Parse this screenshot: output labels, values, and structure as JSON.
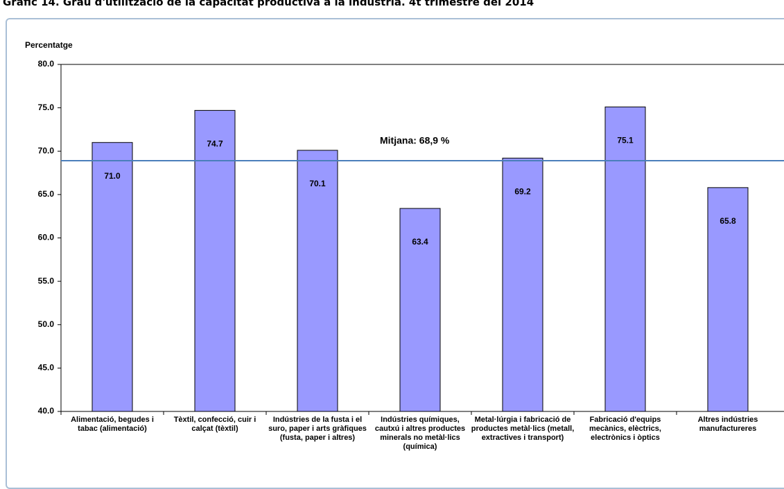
{
  "chart_data": {
    "type": "bar",
    "title": "Gràfic 14. Grau d'utilització de la capacitat productiva a la indústria. 4t trimestre del 2014",
    "y_label": "Percentatge",
    "categories": [
      "Alimentació, begudes i tabac (alimentació)",
      "Tèxtil, confecció, cuir i calçat (tèxtil)",
      "Indústries de la fusta i el suro, paper i arts gràfiques (fusta, paper i altres)",
      "Indústries químiques, cautxú i altres productes minerals no metàl·lics (química)",
      "Metal·lúrgia i fabricació de productes metàl·lics (metall, extractives i transport)",
      "Fabricació d'equips mecànics, elèctrics, electrònics i òptics",
      "Altres indústries manufactureres"
    ],
    "values": [
      71.0,
      74.7,
      70.1,
      63.4,
      69.2,
      75.1,
      65.8
    ],
    "value_labels": [
      "71.0",
      "74.7",
      "70.1",
      "63.4",
      "69.2",
      "75.1",
      "65.8"
    ],
    "color": "#9999ff",
    "ylim": [
      40,
      80
    ],
    "yticks": [
      {
        "value": 40,
        "label": "40.0"
      },
      {
        "value": 45,
        "label": "45.0"
      },
      {
        "value": 50,
        "label": "50.0"
      },
      {
        "value": 55,
        "label": "55.0"
      },
      {
        "value": 60,
        "label": "60.0"
      },
      {
        "value": 65,
        "label": "65.0"
      },
      {
        "value": 70,
        "label": "70.0"
      },
      {
        "value": 75,
        "label": "75.0"
      },
      {
        "value": 80,
        "label": "80.0"
      }
    ],
    "average": {
      "value": 68.9,
      "label": "Mitjana: 68,9 %",
      "color": "#4a7ebb"
    }
  }
}
